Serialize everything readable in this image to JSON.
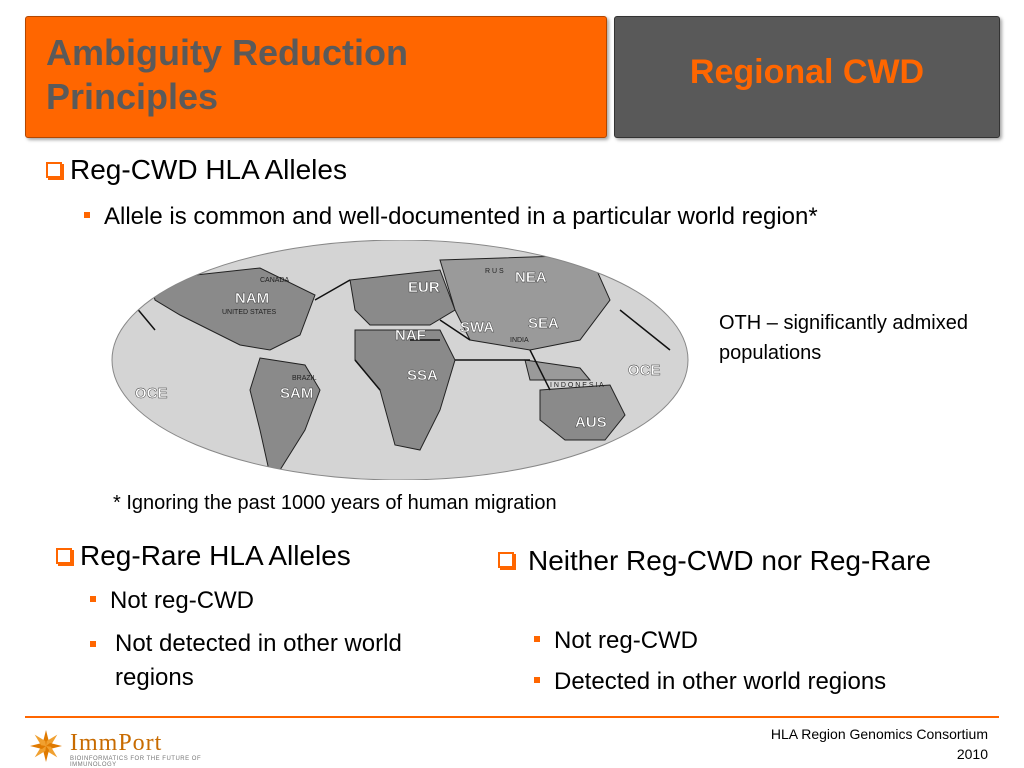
{
  "header": {
    "left_title": "Ambiguity Reduction Principles",
    "right_title": "Regional CWD"
  },
  "section1": {
    "heading": "Reg-CWD HLA Alleles",
    "sub": "Allele is common and well-documented in a particular world region*"
  },
  "map": {
    "regions": [
      "NAM",
      "EUR",
      "NEA",
      "NAF",
      "SWA",
      "SEA",
      "SSA",
      "SAM",
      "OCE",
      "OCE",
      "AUS"
    ],
    "minor_labels": [
      "R U S",
      "I N D O N E S I A",
      "CANADA",
      "UNITED STATES",
      "INDIA",
      "BRAZIL"
    ],
    "oth_note": "OTH – significantly admixed populations",
    "footnote": "* Ignoring the past 1000 years of human migration"
  },
  "section2": {
    "heading": "Reg-Rare HLA Alleles",
    "items": [
      "Not reg-CWD",
      "Not detected in other world regions"
    ]
  },
  "section3": {
    "heading": "Neither Reg-CWD nor Reg-Rare",
    "items": [
      "Not reg-CWD",
      "Detected in other world regions"
    ]
  },
  "footer": {
    "logo_name": "ImmPort",
    "logo_tag": "BIOINFORMATICS FOR THE FUTURE OF IMMUNOLOGY",
    "consortium": "HLA Region Genomics Consortium",
    "year": "2010"
  },
  "colors": {
    "accent": "#ff6600",
    "header_gray": "#595959",
    "title_gray": "#5a5a5a"
  }
}
